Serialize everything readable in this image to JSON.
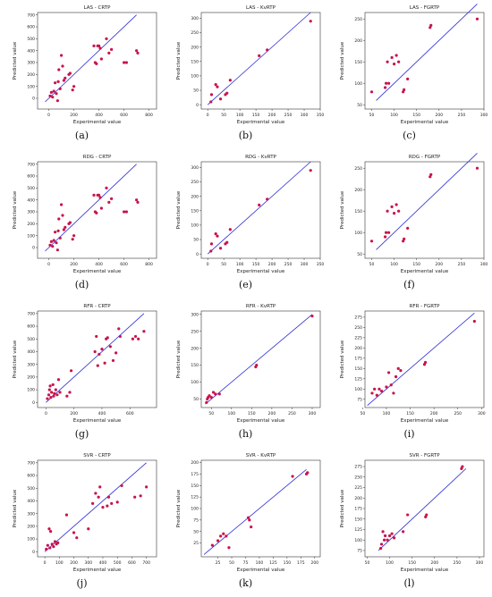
{
  "chart_data": [
    {
      "type": "scatter",
      "title": "LAS - CRTP",
      "xlabel": "Experimental value",
      "ylabel": "Predicted value",
      "caption": "(a)",
      "xlim": [
        -90,
        860
      ],
      "ylim": [
        -90,
        720
      ],
      "xticks": [
        0,
        200,
        400,
        600,
        800
      ],
      "yticks": [
        0,
        100,
        200,
        300,
        400,
        500,
        600,
        700
      ],
      "line": [
        [
          -30,
          -30
        ],
        [
          700,
          700
        ]
      ],
      "points": [
        [
          10,
          20
        ],
        [
          20,
          50
        ],
        [
          30,
          10
        ],
        [
          40,
          60
        ],
        [
          50,
          130
        ],
        [
          60,
          40
        ],
        [
          70,
          -20
        ],
        [
          75,
          140
        ],
        [
          80,
          240
        ],
        [
          90,
          80
        ],
        [
          100,
          360
        ],
        [
          110,
          270
        ],
        [
          120,
          150
        ],
        [
          130,
          170
        ],
        [
          160,
          200
        ],
        [
          170,
          210
        ],
        [
          190,
          70
        ],
        [
          200,
          100
        ],
        [
          360,
          440
        ],
        [
          370,
          300
        ],
        [
          380,
          290
        ],
        [
          390,
          440
        ],
        [
          400,
          440
        ],
        [
          410,
          420
        ],
        [
          420,
          330
        ],
        [
          460,
          500
        ],
        [
          480,
          380
        ],
        [
          500,
          410
        ],
        [
          600,
          300
        ],
        [
          620,
          300
        ],
        [
          700,
          400
        ],
        [
          710,
          380
        ]
      ]
    },
    {
      "type": "scatter",
      "title": "LAS - KvRTP",
      "xlabel": "Experimental value",
      "ylabel": "Predicted value",
      "caption": "(b)",
      "xlim": [
        -20,
        350
      ],
      "ylim": [
        -15,
        320
      ],
      "xticks": [
        0,
        50,
        100,
        150,
        200,
        250,
        300,
        350
      ],
      "yticks": [
        0,
        50,
        100,
        150,
        200,
        250,
        300
      ],
      "line": [
        [
          0,
          0
        ],
        [
          320,
          320
        ]
      ],
      "points": [
        [
          10,
          10
        ],
        [
          12,
          35
        ],
        [
          25,
          70
        ],
        [
          30,
          62
        ],
        [
          40,
          20
        ],
        [
          55,
          35
        ],
        [
          60,
          40
        ],
        [
          70,
          85
        ],
        [
          160,
          170
        ],
        [
          185,
          190
        ],
        [
          320,
          290
        ]
      ]
    },
    {
      "type": "scatter",
      "title": "LAS - FGRTP",
      "xlabel": "Experimental value",
      "ylabel": "Predicted value",
      "caption": "(c)",
      "xlim": [
        35,
        300
      ],
      "ylim": [
        40,
        265
      ],
      "xticks": [
        50,
        100,
        150,
        200,
        250,
        300
      ],
      "yticks": [
        50,
        100,
        150,
        200,
        250
      ],
      "line": [
        [
          60,
          60
        ],
        [
          285,
          285
        ]
      ],
      "points": [
        [
          50,
          80
        ],
        [
          80,
          90
        ],
        [
          82,
          100
        ],
        [
          85,
          150
        ],
        [
          88,
          100
        ],
        [
          95,
          160
        ],
        [
          100,
          145
        ],
        [
          105,
          165
        ],
        [
          110,
          150
        ],
        [
          120,
          80
        ],
        [
          122,
          85
        ],
        [
          130,
          110
        ],
        [
          180,
          230
        ],
        [
          182,
          235
        ],
        [
          285,
          250
        ]
      ]
    },
    {
      "type": "scatter",
      "title": "RDG - CRTP",
      "xlabel": "Experimental value",
      "ylabel": "Predicted value",
      "caption": "(d)",
      "xlim": [
        -90,
        860
      ],
      "ylim": [
        -90,
        720
      ],
      "xticks": [
        0,
        200,
        400,
        600,
        800
      ],
      "yticks": [
        0,
        100,
        200,
        300,
        400,
        500,
        600,
        700
      ],
      "line": [
        [
          -30,
          -30
        ],
        [
          700,
          700
        ]
      ],
      "points": [
        [
          10,
          20
        ],
        [
          20,
          50
        ],
        [
          30,
          10
        ],
        [
          40,
          60
        ],
        [
          50,
          130
        ],
        [
          60,
          40
        ],
        [
          70,
          -20
        ],
        [
          75,
          140
        ],
        [
          80,
          240
        ],
        [
          90,
          80
        ],
        [
          100,
          360
        ],
        [
          110,
          270
        ],
        [
          120,
          150
        ],
        [
          130,
          170
        ],
        [
          160,
          200
        ],
        [
          170,
          210
        ],
        [
          190,
          70
        ],
        [
          200,
          100
        ],
        [
          360,
          440
        ],
        [
          370,
          300
        ],
        [
          380,
          290
        ],
        [
          390,
          440
        ],
        [
          400,
          440
        ],
        [
          410,
          420
        ],
        [
          420,
          330
        ],
        [
          460,
          500
        ],
        [
          480,
          380
        ],
        [
          500,
          410
        ],
        [
          600,
          300
        ],
        [
          620,
          300
        ],
        [
          700,
          400
        ],
        [
          710,
          380
        ]
      ]
    },
    {
      "type": "scatter",
      "title": "RDG - KvRTP",
      "xlabel": "Experimental value",
      "ylabel": "Predicted value",
      "caption": "(e)",
      "xlim": [
        -20,
        350
      ],
      "ylim": [
        -15,
        320
      ],
      "xticks": [
        0,
        50,
        100,
        150,
        200,
        250,
        300,
        350
      ],
      "yticks": [
        0,
        50,
        100,
        150,
        200,
        250,
        300
      ],
      "line": [
        [
          0,
          0
        ],
        [
          320,
          320
        ]
      ],
      "points": [
        [
          10,
          10
        ],
        [
          12,
          35
        ],
        [
          25,
          70
        ],
        [
          30,
          62
        ],
        [
          40,
          20
        ],
        [
          55,
          35
        ],
        [
          60,
          40
        ],
        [
          70,
          85
        ],
        [
          160,
          170
        ],
        [
          185,
          190
        ],
        [
          320,
          290
        ]
      ]
    },
    {
      "type": "scatter",
      "title": "RDG - FGRTP",
      "xlabel": "Experimental value",
      "ylabel": "Predicted value",
      "caption": "(f)",
      "xlim": [
        35,
        300
      ],
      "ylim": [
        40,
        265
      ],
      "xticks": [
        50,
        100,
        150,
        200,
        250,
        300
      ],
      "yticks": [
        50,
        100,
        150,
        200,
        250
      ],
      "line": [
        [
          60,
          60
        ],
        [
          285,
          285
        ]
      ],
      "points": [
        [
          50,
          80
        ],
        [
          80,
          90
        ],
        [
          82,
          100
        ],
        [
          85,
          150
        ],
        [
          88,
          100
        ],
        [
          95,
          160
        ],
        [
          100,
          145
        ],
        [
          105,
          165
        ],
        [
          110,
          150
        ],
        [
          120,
          80
        ],
        [
          122,
          85
        ],
        [
          130,
          110
        ],
        [
          180,
          230
        ],
        [
          182,
          235
        ],
        [
          285,
          250
        ]
      ]
    },
    {
      "type": "scatter",
      "title": "RFR - CRTP",
      "xlabel": "Experimental value",
      "ylabel": "Predicted value",
      "caption": "(g)",
      "xlim": [
        -60,
        790
      ],
      "ylim": [
        -40,
        720
      ],
      "xticks": [
        0,
        200,
        400,
        600
      ],
      "yticks": [
        0,
        100,
        200,
        300,
        400,
        500,
        600,
        700
      ],
      "line": [
        [
          0,
          0
        ],
        [
          700,
          700
        ]
      ],
      "points": [
        [
          10,
          30
        ],
        [
          20,
          60
        ],
        [
          25,
          100
        ],
        [
          30,
          130
        ],
        [
          35,
          40
        ],
        [
          40,
          80
        ],
        [
          50,
          140
        ],
        [
          55,
          50
        ],
        [
          60,
          70
        ],
        [
          70,
          100
        ],
        [
          80,
          60
        ],
        [
          90,
          180
        ],
        [
          100,
          80
        ],
        [
          150,
          50
        ],
        [
          170,
          80
        ],
        [
          180,
          250
        ],
        [
          350,
          400
        ],
        [
          360,
          520
        ],
        [
          370,
          290
        ],
        [
          380,
          380
        ],
        [
          400,
          420
        ],
        [
          420,
          310
        ],
        [
          430,
          500
        ],
        [
          440,
          510
        ],
        [
          460,
          440
        ],
        [
          480,
          330
        ],
        [
          500,
          390
        ],
        [
          520,
          580
        ],
        [
          530,
          520
        ],
        [
          620,
          500
        ],
        [
          640,
          520
        ],
        [
          660,
          500
        ],
        [
          700,
          560
        ]
      ]
    },
    {
      "type": "scatter",
      "title": "RFR - KvRTP",
      "xlabel": "Experimental value",
      "ylabel": "Predicted value",
      "caption": "(h)",
      "xlim": [
        25,
        320
      ],
      "ylim": [
        25,
        310
      ],
      "xticks": [
        50,
        100,
        150,
        200,
        250,
        300
      ],
      "yticks": [
        50,
        100,
        150,
        200,
        250,
        300
      ],
      "line": [
        [
          35,
          35
        ],
        [
          300,
          300
        ]
      ],
      "points": [
        [
          38,
          40
        ],
        [
          40,
          50
        ],
        [
          42,
          55
        ],
        [
          45,
          60
        ],
        [
          50,
          55
        ],
        [
          55,
          70
        ],
        [
          60,
          65
        ],
        [
          70,
          65
        ],
        [
          160,
          145
        ],
        [
          162,
          150
        ],
        [
          300,
          295
        ]
      ]
    },
    {
      "type": "scatter",
      "title": "RFR - FGRTP",
      "xlabel": "Experimental value",
      "ylabel": "Predicted value",
      "caption": "(i)",
      "xlim": [
        55,
        305
      ],
      "ylim": [
        55,
        290
      ],
      "xticks": [
        50,
        100,
        150,
        200,
        250,
        300
      ],
      "yticks": [
        75,
        100,
        125,
        150,
        175,
        200,
        225,
        250,
        275
      ],
      "line": [
        [
          60,
          60
        ],
        [
          285,
          285
        ]
      ],
      "points": [
        [
          70,
          90
        ],
        [
          75,
          100
        ],
        [
          80,
          85
        ],
        [
          85,
          100
        ],
        [
          90,
          95
        ],
        [
          100,
          105
        ],
        [
          105,
          140
        ],
        [
          110,
          110
        ],
        [
          115,
          90
        ],
        [
          120,
          130
        ],
        [
          125,
          150
        ],
        [
          130,
          145
        ],
        [
          180,
          160
        ],
        [
          182,
          165
        ],
        [
          285,
          265
        ]
      ]
    },
    {
      "type": "scatter",
      "title": "SVR - CRTP",
      "xlabel": "Experimental value",
      "ylabel": "Predicted value",
      "caption": "(j)",
      "xlim": [
        -50,
        770
      ],
      "ylim": [
        -40,
        720
      ],
      "xticks": [
        0,
        100,
        200,
        300,
        400,
        500,
        600,
        700
      ],
      "yticks": [
        0,
        100,
        200,
        300,
        400,
        500,
        600,
        700
      ],
      "line": [
        [
          0,
          0
        ],
        [
          700,
          700
        ]
      ],
      "points": [
        [
          10,
          20
        ],
        [
          20,
          50
        ],
        [
          30,
          180
        ],
        [
          35,
          30
        ],
        [
          40,
          160
        ],
        [
          50,
          60
        ],
        [
          60,
          40
        ],
        [
          70,
          80
        ],
        [
          80,
          60
        ],
        [
          90,
          70
        ],
        [
          150,
          290
        ],
        [
          200,
          150
        ],
        [
          220,
          110
        ],
        [
          300,
          180
        ],
        [
          330,
          380
        ],
        [
          350,
          460
        ],
        [
          370,
          430
        ],
        [
          380,
          510
        ],
        [
          400,
          350
        ],
        [
          430,
          360
        ],
        [
          440,
          430
        ],
        [
          460,
          380
        ],
        [
          500,
          390
        ],
        [
          530,
          520
        ],
        [
          620,
          430
        ],
        [
          660,
          440
        ],
        [
          700,
          510
        ]
      ]
    },
    {
      "type": "scatter",
      "title": "SVR - KvRTP",
      "xlabel": "Experimental value",
      "ylabel": "Predicted value",
      "caption": "(k)",
      "xlim": [
        -5,
        210
      ],
      "ylim": [
        -5,
        205
      ],
      "xticks": [
        25,
        50,
        75,
        100,
        125,
        150,
        175,
        200
      ],
      "yticks": [
        25,
        50,
        75,
        100,
        125,
        150,
        175,
        200
      ],
      "line": [
        [
          0,
          0
        ],
        [
          185,
          185
        ]
      ],
      "points": [
        [
          15,
          20
        ],
        [
          25,
          30
        ],
        [
          30,
          40
        ],
        [
          35,
          45
        ],
        [
          40,
          40
        ],
        [
          45,
          15
        ],
        [
          80,
          80
        ],
        [
          82,
          75
        ],
        [
          85,
          60
        ],
        [
          160,
          170
        ],
        [
          185,
          175
        ],
        [
          187,
          178
        ]
      ]
    },
    {
      "type": "scatter",
      "title": "SVR - FGRTP",
      "xlabel": "Experimental value",
      "ylabel": "Predicted value",
      "caption": "(l)",
      "xlim": [
        45,
        310
      ],
      "ylim": [
        60,
        290
      ],
      "xticks": [
        50,
        100,
        150,
        200,
        250,
        300
      ],
      "yticks": [
        75,
        100,
        125,
        150,
        175,
        200,
        225,
        250,
        275
      ],
      "line": [
        [
          75,
          75
        ],
        [
          270,
          270
        ]
      ],
      "points": [
        [
          80,
          80
        ],
        [
          82,
          90
        ],
        [
          85,
          120
        ],
        [
          88,
          100
        ],
        [
          90,
          110
        ],
        [
          95,
          100
        ],
        [
          100,
          110
        ],
        [
          105,
          115
        ],
        [
          110,
          105
        ],
        [
          130,
          120
        ],
        [
          140,
          160
        ],
        [
          180,
          155
        ],
        [
          182,
          160
        ],
        [
          260,
          270
        ],
        [
          262,
          275
        ]
      ]
    }
  ],
  "colors": {
    "point": "#c8134b",
    "line": "#2c2cd6",
    "axis": "#333333",
    "text": "#222222"
  }
}
